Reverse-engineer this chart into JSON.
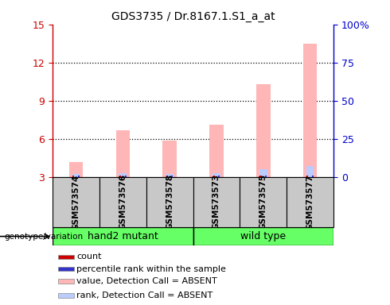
{
  "title": "GDS3735 / Dr.8167.1.S1_a_at",
  "samples": [
    "GSM573574",
    "GSM573576",
    "GSM573578",
    "GSM573573",
    "GSM573575",
    "GSM573577"
  ],
  "group_labels": [
    "hand2 mutant",
    "wild type"
  ],
  "ylim_left": [
    3,
    15
  ],
  "ylim_right": [
    0,
    100
  ],
  "yticks_left": [
    3,
    6,
    9,
    12,
    15
  ],
  "yticks_right": [
    0,
    25,
    50,
    75,
    100
  ],
  "yticklabels_right": [
    "0",
    "25",
    "50",
    "75",
    "100%"
  ],
  "pink_bar_heights": [
    4.2,
    6.7,
    5.85,
    7.1,
    10.3,
    13.5
  ],
  "blue_bar_heights": [
    3.22,
    3.27,
    3.22,
    3.27,
    3.6,
    3.85
  ],
  "red_snippet": 0.1,
  "blue_snippet": 0.1,
  "pink_color": "#FFB6B6",
  "light_blue_color": "#BBCCFF",
  "red_color": "#CC0000",
  "dark_blue_color": "#3333CC",
  "left_axis_color": "#CC0000",
  "right_axis_color": "#0000CC",
  "legend_items": [
    {
      "label": "count",
      "color": "#CC0000"
    },
    {
      "label": "percentile rank within the sample",
      "color": "#3333CC"
    },
    {
      "label": "value, Detection Call = ABSENT",
      "color": "#FFB6B6"
    },
    {
      "label": "rank, Detection Call = ABSENT",
      "color": "#BBCCFF"
    }
  ],
  "genotype_label": "genotype/variation",
  "tick_area_bg": "#C8C8C8",
  "green_color": "#66FF66"
}
